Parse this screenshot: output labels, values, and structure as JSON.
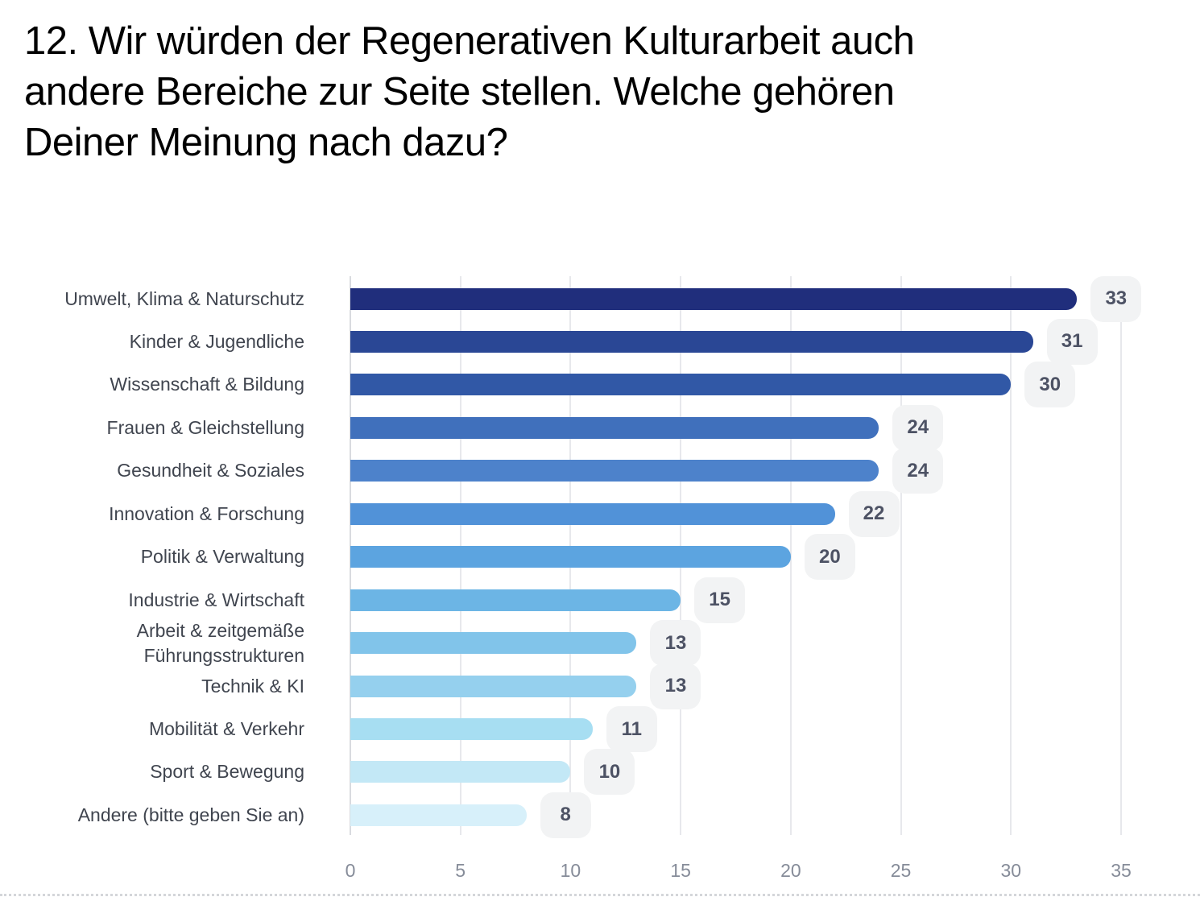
{
  "title": "12. Wir würden der Regenerativen Kulturarbeit auch andere Bereiche zur Seite stellen. Welche gehören Deiner Meinung nach dazu?",
  "title_lines": [
    "12. Wir würden der Regenerativen Kulturarbeit auch",
    "andere Bereiche zur Seite stellen. Welche gehören",
    "Deiner Meinung nach dazu?"
  ],
  "chart_data": {
    "type": "bar",
    "orientation": "horizontal",
    "title": "12. Wir würden der Regenerativen Kulturarbeit auch andere Bereiche zur Seite stellen. Welche gehören Deiner Meinung nach dazu?",
    "categories": [
      "Umwelt, Klima & Naturschutz",
      "Kinder & Jugendliche",
      "Wissenschaft & Bildung",
      "Frauen & Gleichstellung",
      "Gesundheit & Soziales",
      "Innovation & Forschung",
      "Politik & Verwaltung",
      "Industrie & Wirtschaft",
      "Arbeit & zeitgemäße Führungsstrukturen",
      "Technik & KI",
      "Mobilität & Verkehr",
      "Sport & Bewegung",
      "Andere (bitte geben Sie an)"
    ],
    "values": [
      33,
      31,
      30,
      24,
      24,
      22,
      20,
      15,
      13,
      13,
      11,
      10,
      8
    ],
    "bar_colors": [
      "#202e7c",
      "#2a4795",
      "#3158a6",
      "#4070bc",
      "#4d82cb",
      "#5192d8",
      "#5ca4e0",
      "#6cb5e5",
      "#81c4ea",
      "#95d0ee",
      "#a7def2",
      "#c3e8f6",
      "#d7f0fa"
    ],
    "x_ticks": [
      0,
      5,
      10,
      15,
      20,
      25,
      30,
      35
    ],
    "xlim": [
      0,
      35.5
    ],
    "grid": true,
    "legend": false,
    "value_labels_shown": true,
    "value_badge_bg": "#f2f3f4",
    "value_text_color": "#4d5264",
    "category_label_color": "#40454f",
    "axis_tick_color": "#868c99",
    "xlabel": "",
    "ylabel": ""
  }
}
